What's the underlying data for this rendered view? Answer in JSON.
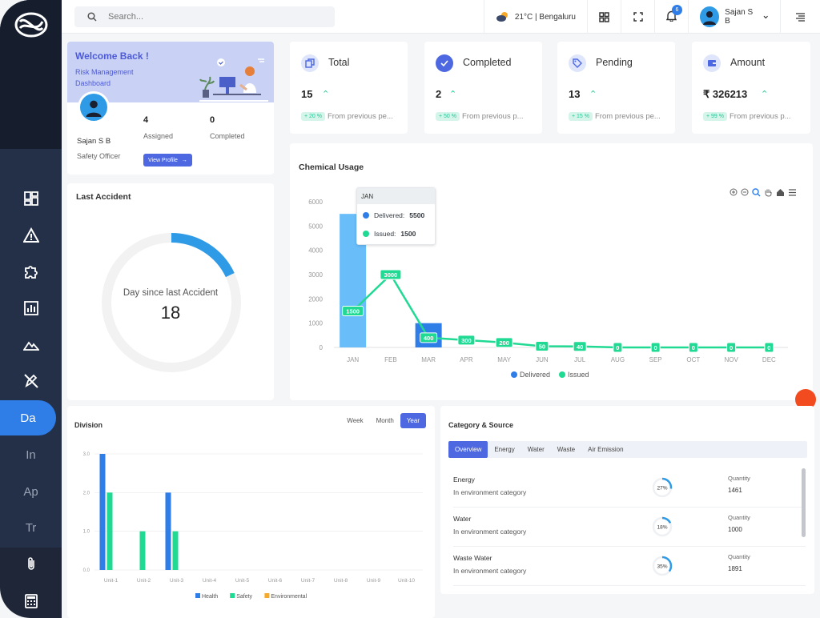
{
  "search": {
    "placeholder": "Search..."
  },
  "topbar": {
    "weather": "21°C | Bengaluru",
    "notifications": "6",
    "user_name": "Sajan S B"
  },
  "sidebar": {
    "items": [
      "dashboard",
      "alert",
      "puzzle",
      "report",
      "terrain",
      "no-edit"
    ],
    "text_items": [
      "Da",
      "In",
      "Ap",
      "Tr"
    ],
    "active": "Da"
  },
  "welcome": {
    "title": "Welcome Back !",
    "subtitle": "Risk Management Dashboard",
    "name": "Sajan S B",
    "role": "Safety Officer",
    "assigned_value": "4",
    "assigned_label": "Assigned",
    "completed_value": "0",
    "completed_label": "Completed",
    "button": "View Profile"
  },
  "stats": [
    {
      "label": "Total",
      "value": "15",
      "pct": "+ 20 %",
      "from": "From previous pe..."
    },
    {
      "label": "Completed",
      "value": "2",
      "pct": "+ 50 %",
      "from": "From previous p..."
    },
    {
      "label": "Pending",
      "value": "13",
      "pct": "+ 15 %",
      "from": "From previous pe..."
    },
    {
      "label": "Amount",
      "value": "₹ 326213",
      "pct": "+ 99 %",
      "from": "From previous p..."
    }
  ],
  "accident": {
    "title": "Last Accident",
    "caption": "Day since last Accident",
    "days": "18",
    "progress": 0.18
  },
  "chemical": {
    "title": "Chemical Usage",
    "tooltip_month": "JAN",
    "tooltip_delivered_label": "Delivered:",
    "tooltip_delivered": "5500",
    "tooltip_issued_label": "Issued:",
    "tooltip_issued": "1500"
  },
  "division": {
    "title": "Division",
    "tabs": [
      "Week",
      "Month",
      "Year"
    ],
    "active_tab": "Year"
  },
  "category": {
    "title": "Category & Source",
    "tabs": [
      "Overview",
      "Energy",
      "Water",
      "Waste",
      "Air Emission"
    ],
    "active_tab": "Overview",
    "rows": [
      {
        "name": "Energy",
        "cat": "In environment category",
        "pct": "27%",
        "frac": 0.27,
        "qlabel": "Quantity",
        "qty": "1461"
      },
      {
        "name": "Water",
        "cat": "In environment category",
        "pct": "18%",
        "frac": 0.18,
        "qlabel": "Quantity",
        "qty": "1000"
      },
      {
        "name": "Waste Water",
        "cat": "In environment category",
        "pct": "35%",
        "frac": 0.35,
        "qlabel": "Quantity",
        "qty": "1891"
      }
    ]
  },
  "colors": {
    "primary": "#2f7ee8",
    "green": "#20d993",
    "orange": "#f7a928",
    "delivered": "#69bdf9"
  },
  "chart_data": [
    {
      "type": "bar+line",
      "title": "Chemical Usage",
      "categories": [
        "JAN",
        "FEB",
        "MAR",
        "APR",
        "MAY",
        "JUN",
        "JUL",
        "AUG",
        "SEP",
        "OCT",
        "NOV",
        "DEC"
      ],
      "series": [
        {
          "name": "Delivered",
          "type": "bar",
          "values": [
            5500,
            0,
            1000,
            0,
            0,
            0,
            0,
            0,
            0,
            0,
            0,
            0
          ]
        },
        {
          "name": "Issued",
          "type": "line",
          "values": [
            1500,
            3000,
            400,
            300,
            200,
            50,
            40,
            0,
            0,
            0,
            0,
            0
          ]
        }
      ],
      "yticks": [
        0,
        1000,
        2000,
        3000,
        4000,
        5000,
        6000
      ],
      "ylim": [
        0,
        6000
      ],
      "legend": "bottom"
    },
    {
      "type": "bar",
      "title": "Division",
      "categories": [
        "Unit-1",
        "Unit-2",
        "Unit-3",
        "Unit-4",
        "Unit-5",
        "Unit-6",
        "Unit-7",
        "Unit-8",
        "Unit-9",
        "Unit-10"
      ],
      "series": [
        {
          "name": "Health",
          "values": [
            3,
            0,
            2,
            0,
            0,
            0,
            0,
            0,
            0,
            0
          ]
        },
        {
          "name": "Safety",
          "values": [
            2,
            1,
            1,
            0,
            0,
            0,
            0,
            0,
            0,
            0
          ]
        },
        {
          "name": "Environmental",
          "values": [
            0,
            0,
            0,
            0,
            0,
            0,
            0,
            0,
            0,
            0
          ]
        }
      ],
      "yticks": [
        "0.0",
        "1.0",
        "2.0",
        "3.0"
      ],
      "ylim": [
        0,
        3
      ],
      "legend": "bottom"
    }
  ]
}
